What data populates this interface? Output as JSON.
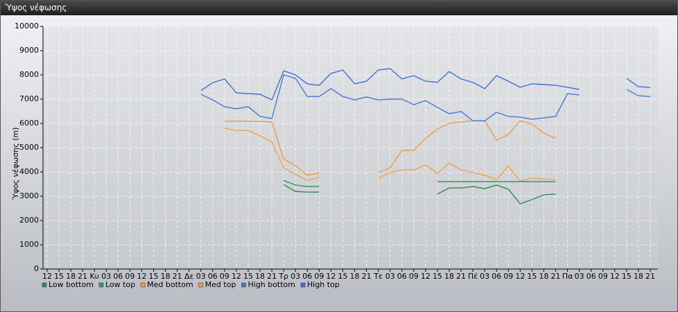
{
  "window_title": "Ύψος νέφωσης",
  "chart_data": {
    "type": "line",
    "ylabel": "Ύψος νέφωσης (m)",
    "categories": [
      "12",
      "15",
      "18",
      "21",
      "Κυ",
      "03",
      "06",
      "09",
      "12",
      "15",
      "18",
      "21",
      "Δε",
      "03",
      "06",
      "09",
      "12",
      "15",
      "18",
      "21",
      "Τρ",
      "03",
      "06",
      "09",
      "12",
      "15",
      "18",
      "21",
      "Τε",
      "03",
      "06",
      "09",
      "12",
      "15",
      "18",
      "21",
      "Πέ",
      "03",
      "06",
      "09",
      "12",
      "15",
      "18",
      "21",
      "Πα",
      "03",
      "06",
      "09",
      "12",
      "15",
      "18",
      "21"
    ],
    "ylim": [
      0,
      10000
    ],
    "yticks": [
      0,
      1000,
      2000,
      3000,
      4000,
      5000,
      6000,
      7000,
      8000,
      9000,
      10000
    ],
    "grid": true,
    "legend": "bottom",
    "series": [
      {
        "name": "Low bottom",
        "color": "#2e8b57",
        "values": [
          null,
          null,
          null,
          null,
          null,
          null,
          null,
          null,
          null,
          null,
          null,
          null,
          null,
          null,
          null,
          null,
          null,
          null,
          null,
          null,
          3480,
          3200,
          3170,
          3170,
          null,
          null,
          null,
          null,
          null,
          null,
          null,
          null,
          null,
          3090,
          3340,
          3340,
          3400,
          3310,
          3460,
          3290,
          2690,
          2860,
          3060,
          3090,
          null,
          null,
          null,
          null,
          null,
          null,
          null,
          null
        ]
      },
      {
        "name": "Low top",
        "color": "#2f9a62",
        "values": [
          null,
          null,
          null,
          null,
          null,
          null,
          null,
          null,
          null,
          null,
          null,
          null,
          null,
          null,
          null,
          null,
          null,
          null,
          null,
          null,
          3650,
          3460,
          3400,
          3400,
          null,
          null,
          null,
          null,
          null,
          null,
          null,
          null,
          null,
          3600,
          3600,
          3600,
          3600,
          3600,
          3600,
          3600,
          3600,
          3600,
          3600,
          3600,
          null,
          null,
          null,
          null,
          null,
          null,
          null,
          null
        ]
      },
      {
        "name": "Med bottom",
        "color": "#f0a14a",
        "values": [
          null,
          null,
          null,
          null,
          null,
          null,
          null,
          null,
          null,
          null,
          null,
          null,
          null,
          null,
          null,
          5800,
          5710,
          5710,
          5490,
          5230,
          4170,
          3910,
          3650,
          3780,
          null,
          null,
          null,
          null,
          3740,
          3970,
          4090,
          4090,
          4290,
          3940,
          4370,
          4090,
          3970,
          3860,
          3690,
          4230,
          3630,
          3740,
          3710,
          3690,
          null,
          null,
          null,
          null,
          null,
          null,
          null,
          null
        ]
      },
      {
        "name": "Med top",
        "color": "#ee9a40",
        "values": [
          null,
          null,
          null,
          null,
          null,
          null,
          null,
          null,
          null,
          null,
          null,
          null,
          null,
          null,
          null,
          6090,
          6090,
          6090,
          6080,
          6060,
          4530,
          4260,
          3870,
          3950,
          null,
          null,
          null,
          null,
          3970,
          4170,
          4890,
          4890,
          5370,
          5770,
          6000,
          6060,
          6110,
          6110,
          5310,
          5540,
          6110,
          5970,
          5600,
          5370,
          null,
          null,
          null,
          null,
          null,
          null,
          null,
          null
        ]
      },
      {
        "name": "High bottom",
        "color": "#4a78d0",
        "values": [
          null,
          null,
          null,
          null,
          null,
          null,
          null,
          null,
          null,
          null,
          null,
          null,
          null,
          7200,
          6970,
          6690,
          6600,
          6690,
          6290,
          6200,
          8000,
          7860,
          7110,
          7110,
          7430,
          7110,
          6970,
          7090,
          6970,
          7000,
          7000,
          6770,
          6940,
          6660,
          6400,
          6490,
          6110,
          6110,
          6460,
          6290,
          6260,
          6170,
          6230,
          6290,
          7230,
          7170,
          null,
          null,
          null,
          7400,
          7140,
          7110
        ]
      },
      {
        "name": "High top",
        "color": "#3f6fd4",
        "values": [
          null,
          null,
          null,
          null,
          null,
          null,
          null,
          null,
          null,
          null,
          null,
          null,
          null,
          7350,
          7680,
          7830,
          7260,
          7230,
          7200,
          6970,
          8170,
          8000,
          7630,
          7570,
          8060,
          8200,
          7630,
          7740,
          8200,
          8260,
          7830,
          7970,
          7740,
          7690,
          8140,
          7830,
          7690,
          7430,
          7970,
          7740,
          7490,
          7630,
          7600,
          7570,
          7490,
          7400,
          null,
          null,
          null,
          7860,
          7510,
          7490
        ]
      }
    ]
  }
}
